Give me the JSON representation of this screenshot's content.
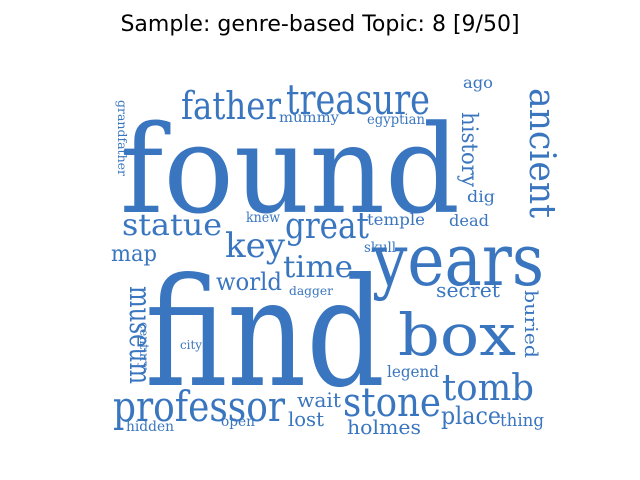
{
  "title": "Sample: genre-based Topic: 8 [9/50]",
  "colors": {
    "word": "#3a76bf",
    "background": "#ffffff",
    "title": "#000000"
  },
  "words": [
    "found",
    "find",
    "years",
    "box",
    "treasure",
    "father",
    "ancient",
    "professor",
    "stone",
    "tomb",
    "key",
    "great",
    "statue",
    "time",
    "museum",
    "history",
    "world",
    "place",
    "secret",
    "wait",
    "holmes",
    "map",
    "buried",
    "lost",
    "legend",
    "dig",
    "dead",
    "temple",
    "mummy",
    "egyptian",
    "ago",
    "knew",
    "skull",
    "dagger",
    "grandfather",
    "century",
    "city",
    "hidden",
    "open",
    "thing"
  ]
}
